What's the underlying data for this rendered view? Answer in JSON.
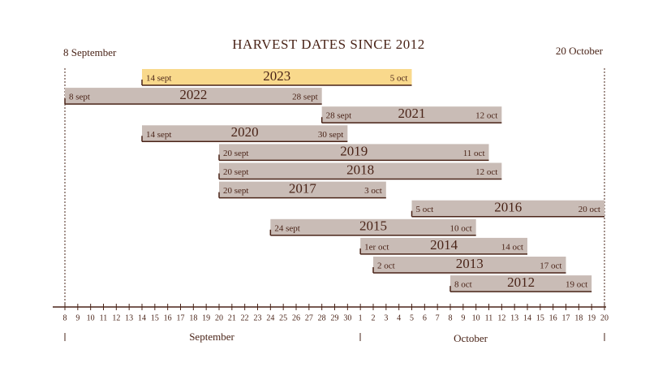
{
  "chart_data": {
    "type": "range-bar",
    "title": "HARVEST DATES SINCE 2012",
    "start_caption": "8 September",
    "end_caption": "20 October",
    "month_labels": [
      "September",
      "October"
    ],
    "xlim": [
      8,
      50
    ],
    "xticks": [
      8,
      9,
      10,
      11,
      12,
      13,
      14,
      15,
      16,
      17,
      18,
      19,
      20,
      21,
      22,
      23,
      24,
      25,
      26,
      27,
      28,
      29,
      30,
      {
        "value": 31,
        "label": "1"
      },
      {
        "value": 32,
        "label": "2"
      },
      {
        "value": 33,
        "label": "3"
      },
      {
        "value": 34,
        "label": "4"
      },
      {
        "value": 35,
        "label": "5"
      },
      {
        "value": 36,
        "label": "6"
      },
      {
        "value": 37,
        "label": "7"
      },
      {
        "value": 38,
        "label": "8"
      },
      {
        "value": 39,
        "label": "9"
      },
      {
        "value": 40,
        "label": "10"
      },
      {
        "value": 41,
        "label": "11"
      },
      {
        "value": 42,
        "label": "12"
      },
      {
        "value": 43,
        "label": "13"
      },
      {
        "value": 44,
        "label": "14"
      },
      {
        "value": 45,
        "label": "15"
      },
      {
        "value": 46,
        "label": "16"
      },
      {
        "value": 47,
        "label": "17"
      },
      {
        "value": 48,
        "label": "18"
      },
      {
        "value": 49,
        "label": "19"
      },
      {
        "value": 50,
        "label": "20"
      }
    ],
    "highlight_color": "#f9d98c",
    "color": "#c9bcb6",
    "series": [
      {
        "name": "2023",
        "start": 14,
        "end": 35,
        "start_label": "14 sept",
        "end_label": "5 oct",
        "highlight": true
      },
      {
        "name": "2022",
        "start": 8,
        "end": 28,
        "start_label": "8 sept",
        "end_label": "28 sept"
      },
      {
        "name": "2021",
        "start": 28,
        "end": 42,
        "start_label": "28 sept",
        "end_label": "12 oct"
      },
      {
        "name": "2020",
        "start": 14,
        "end": 30,
        "start_label": "14 sept",
        "end_label": "30 sept"
      },
      {
        "name": "2019",
        "start": 20,
        "end": 41,
        "start_label": "20 sept",
        "end_label": "11 oct"
      },
      {
        "name": "2018",
        "start": 20,
        "end": 42,
        "start_label": "20 sept",
        "end_label": "12 oct"
      },
      {
        "name": "2017",
        "start": 20,
        "end": 33,
        "start_label": "20 sept",
        "end_label": "3 oct"
      },
      {
        "name": "2016",
        "start": 35,
        "end": 50,
        "start_label": "5 oct",
        "end_label": "20 oct"
      },
      {
        "name": "2015",
        "start": 24,
        "end": 40,
        "start_label": "24 sept",
        "end_label": "10 oct"
      },
      {
        "name": "2014",
        "start": 31,
        "end": 44,
        "start_label": "1er oct",
        "end_label": "14 oct"
      },
      {
        "name": "2013",
        "start": 32,
        "end": 47,
        "start_label": "2 oct",
        "end_label": "17 oct"
      },
      {
        "name": "2012",
        "start": 38,
        "end": 49,
        "start_label": "8 oct",
        "end_label": "19 oct"
      }
    ]
  }
}
